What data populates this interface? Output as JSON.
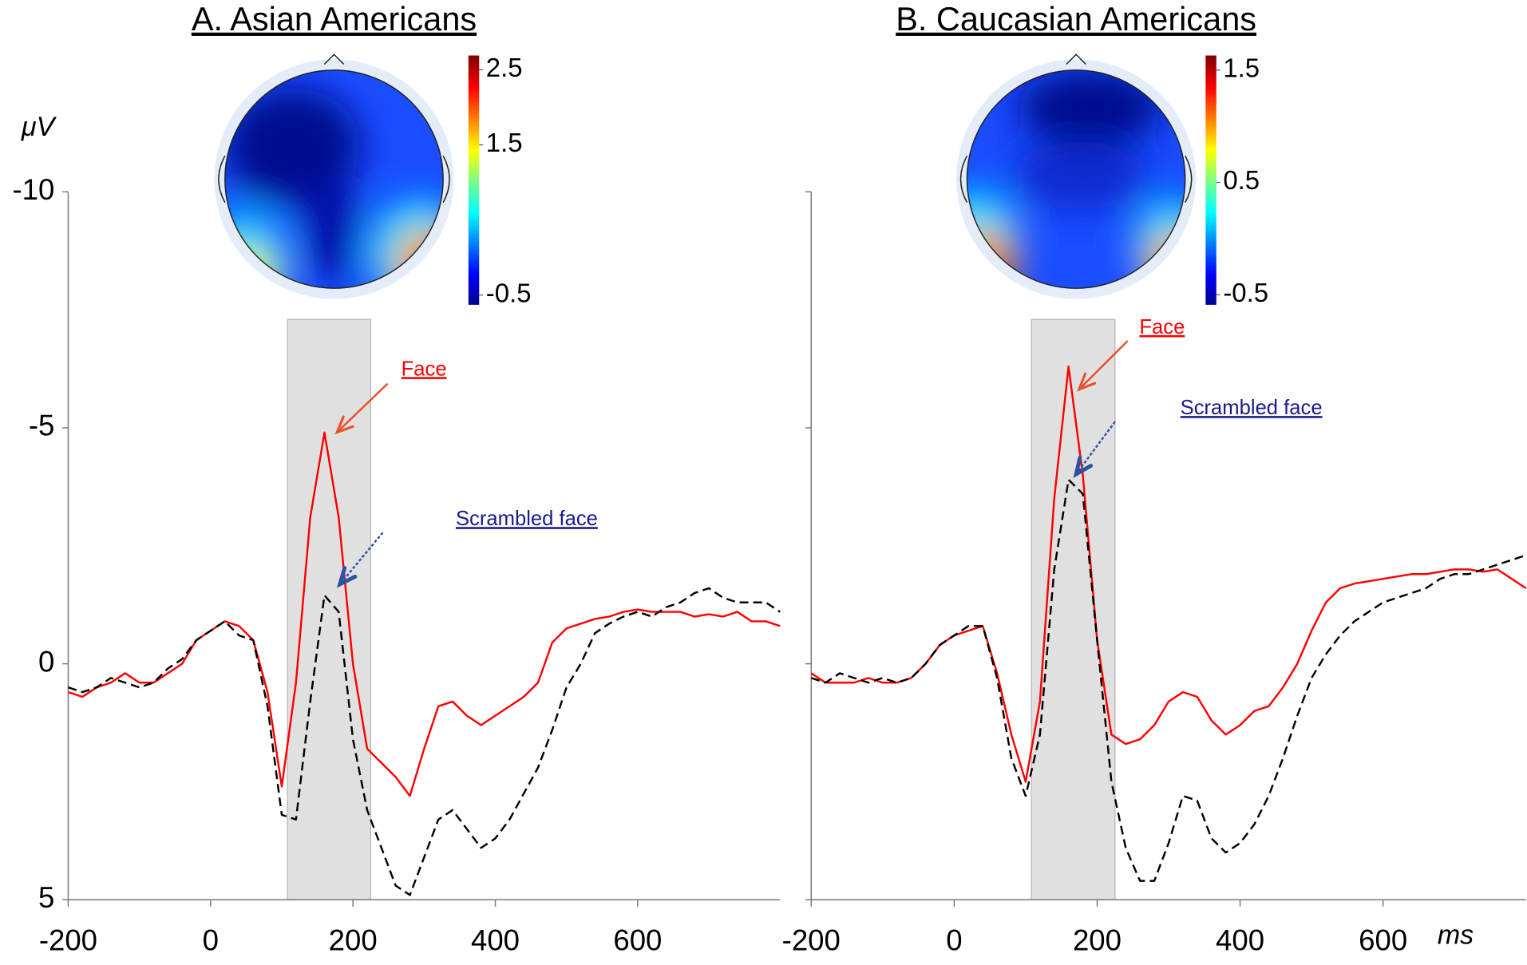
{
  "chart_data": [
    {
      "type": "line",
      "title": "A. Asian Americans",
      "ylabel": "μV",
      "x": [
        -200,
        -180,
        -160,
        -140,
        -120,
        -100,
        -80,
        -60,
        -40,
        -20,
        0,
        20,
        40,
        60,
        80,
        100,
        120,
        140,
        160,
        180,
        200,
        220,
        240,
        260,
        280,
        300,
        320,
        340,
        360,
        380,
        400,
        420,
        440,
        460,
        480,
        500,
        520,
        540,
        560,
        580,
        600,
        620,
        640,
        660,
        680,
        700,
        720,
        740,
        760,
        780,
        800
      ],
      "series": [
        {
          "name": "Face",
          "color": "#ff0000",
          "dashed": false,
          "values": [
            0.6,
            0.7,
            0.5,
            0.4,
            0.2,
            0.4,
            0.4,
            0.2,
            0,
            -0.5,
            -0.7,
            -0.9,
            -0.8,
            -0.5,
            0.6,
            2.6,
            0.4,
            -3.1,
            -4.9,
            -3.1,
            0,
            1.8,
            2.1,
            2.4,
            2.8,
            1.8,
            0.9,
            0.8,
            1.1,
            1.3,
            1.1,
            0.9,
            0.7,
            0.4,
            -0.45,
            -0.75,
            -0.85,
            -0.95,
            -1.0,
            -1.1,
            -1.15,
            -1.1,
            -1.1,
            -1.1,
            -1.0,
            -1.05,
            -1.0,
            -1.1,
            -0.9,
            -0.9,
            -0.8
          ]
        },
        {
          "name": "Scrambled face",
          "color": "#000000",
          "dashed": true,
          "values": [
            0.5,
            0.6,
            0.5,
            0.3,
            0.4,
            0.5,
            0.4,
            0.1,
            -0.1,
            -0.5,
            -0.7,
            -0.9,
            -0.6,
            -0.5,
            0.9,
            3.2,
            3.3,
            0.8,
            -1.45,
            -1.1,
            1.6,
            3.1,
            3.9,
            4.7,
            4.9,
            4.1,
            3.3,
            3.1,
            3.5,
            3.9,
            3.7,
            3.3,
            2.75,
            2.2,
            1.4,
            0.5,
            0,
            -0.65,
            -0.85,
            -1.0,
            -1.1,
            -1.0,
            -1.2,
            -1.3,
            -1.5,
            -1.6,
            -1.4,
            -1.3,
            -1.3,
            -1.3,
            -1.1
          ]
        }
      ],
      "annotations": [
        {
          "text": "Face",
          "color": "#ff0000",
          "arrow_color": "#e8502a"
        },
        {
          "text": "Scrambled face",
          "color": "#1a1a8c",
          "arrow_color": "#3050a0"
        }
      ],
      "highlight": [
        108,
        225
      ],
      "xlim": [
        -200,
        800
      ],
      "xticks": [
        -200,
        0,
        200,
        400,
        600
      ],
      "ylim": [
        -10,
        5
      ],
      "y_inverted": true,
      "yticks": [
        -10,
        -5,
        0,
        5
      ],
      "colorbar": {
        "lim": [
          -0.63,
          2.69
        ],
        "ticks": [
          2.5,
          1.5,
          -0.5
        ]
      }
    },
    {
      "type": "line",
      "title": "B. Caucasian Americans",
      "xlabel": "ms",
      "x": [
        -200,
        -180,
        -160,
        -140,
        -120,
        -100,
        -80,
        -60,
        -40,
        -20,
        0,
        20,
        40,
        60,
        80,
        100,
        120,
        140,
        160,
        180,
        200,
        220,
        240,
        260,
        280,
        300,
        320,
        340,
        360,
        380,
        400,
        420,
        440,
        460,
        480,
        500,
        520,
        540,
        560,
        580,
        600,
        620,
        640,
        660,
        680,
        700,
        720,
        740,
        760,
        780,
        800
      ],
      "series": [
        {
          "name": "Face",
          "color": "#ff0000",
          "dashed": false,
          "values": [
            0.2,
            0.4,
            0.4,
            0.4,
            0.3,
            0.4,
            0.4,
            0.3,
            0,
            -0.4,
            -0.6,
            -0.7,
            -0.8,
            0.2,
            1.5,
            2.5,
            0.8,
            -3.5,
            -6.3,
            -4.0,
            -0.5,
            1.5,
            1.7,
            1.6,
            1.3,
            0.8,
            0.6,
            0.7,
            1.2,
            1.5,
            1.3,
            1.0,
            0.9,
            0.5,
            0,
            -0.7,
            -1.3,
            -1.6,
            -1.7,
            -1.75,
            -1.8,
            -1.85,
            -1.9,
            -1.9,
            -1.95,
            -2.0,
            -2.0,
            -1.95,
            -2.0,
            -1.8,
            -1.6
          ]
        },
        {
          "name": "Scrambled face",
          "color": "#000000",
          "dashed": true,
          "values": [
            0.3,
            0.4,
            0.2,
            0.3,
            0.4,
            0.3,
            0.4,
            0.3,
            0,
            -0.4,
            -0.6,
            -0.8,
            -0.8,
            0.3,
            2.0,
            2.8,
            1.5,
            -2.0,
            -3.9,
            -3.6,
            -0.5,
            2.5,
            3.9,
            4.6,
            4.6,
            3.8,
            2.8,
            2.9,
            3.7,
            4.0,
            3.8,
            3.4,
            2.8,
            2.0,
            1.1,
            0.3,
            -0.2,
            -0.6,
            -0.9,
            -1.1,
            -1.3,
            -1.4,
            -1.5,
            -1.6,
            -1.8,
            -1.9,
            -1.9,
            -2.0,
            -2.1,
            -2.2,
            -2.3
          ]
        }
      ],
      "annotations": [
        {
          "text": "Face",
          "color": "#ff0000",
          "arrow_color": "#e8502a"
        },
        {
          "text": "Scrambled face",
          "color": "#1a1a8c",
          "arrow_color": "#3050a0"
        }
      ],
      "highlight": [
        108,
        225
      ],
      "xlim": [
        -200,
        800
      ],
      "xticks": [
        -200,
        0,
        200,
        400,
        600
      ],
      "ylim": [
        -10,
        5
      ],
      "y_inverted": true,
      "colorbar": {
        "lim": [
          -0.59,
          1.63
        ],
        "ticks": [
          1.5,
          0.5,
          -0.5
        ]
      }
    }
  ]
}
